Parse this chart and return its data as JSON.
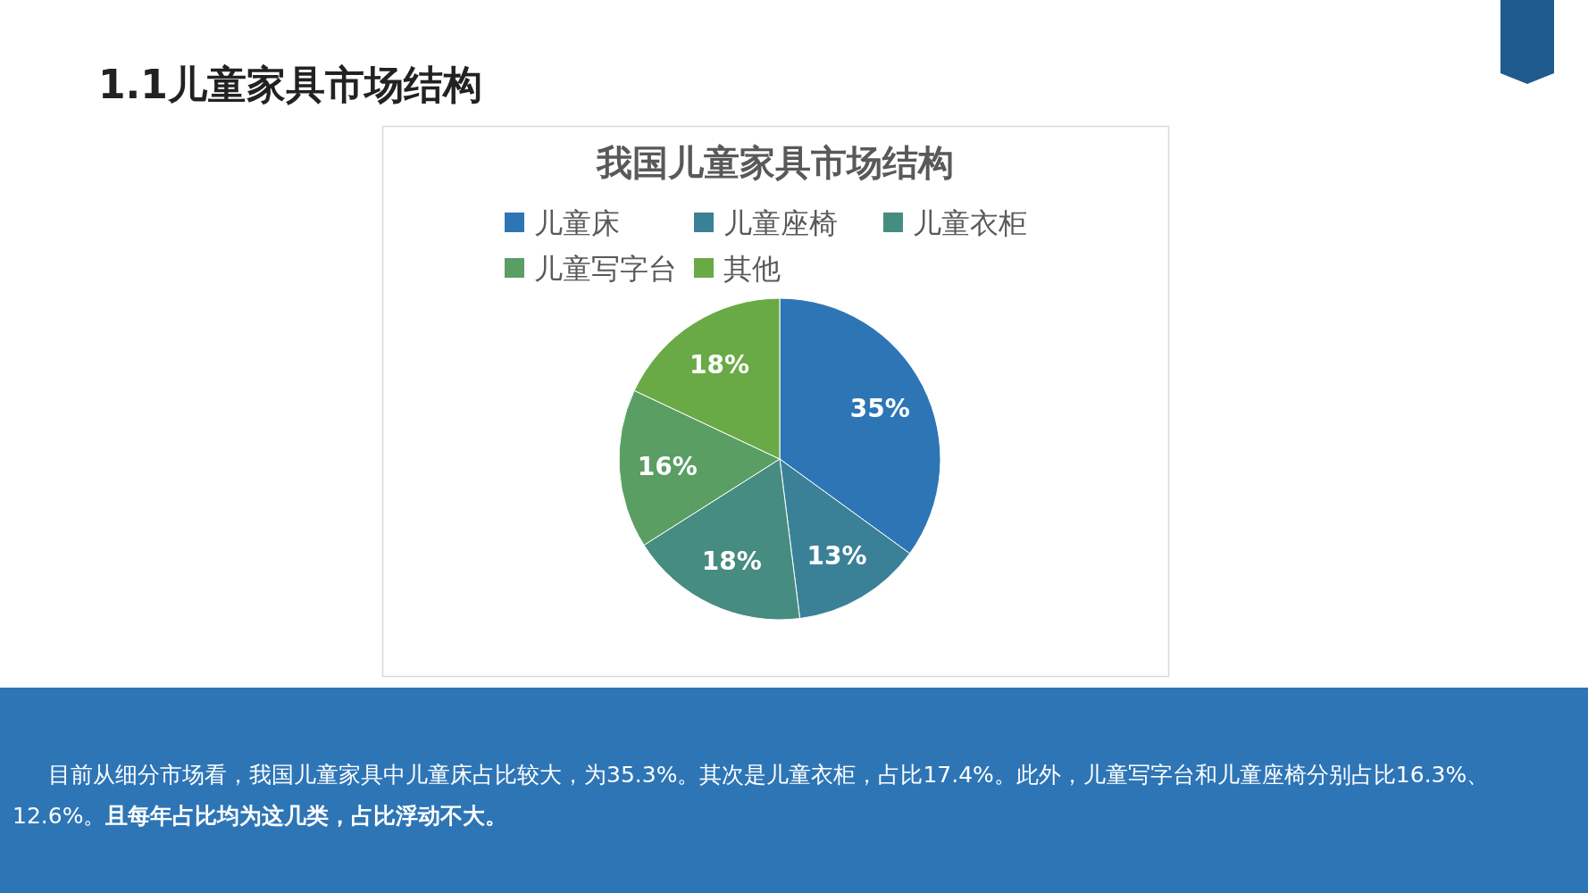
{
  "chart_data": {
    "type": "pie",
    "title": "我国儿童家具市场结构",
    "categories": [
      "儿童床",
      "儿童座椅",
      "儿童衣柜",
      "儿童写字台",
      "其他"
    ],
    "values": [
      35,
      13,
      18,
      16,
      18
    ],
    "colors": [
      "#2e75b6",
      "#3a8198",
      "#468c80",
      "#5a9e64",
      "#6aaa46"
    ],
    "value_labels": [
      "35%",
      "13%",
      "18%",
      "16%",
      "18%"
    ],
    "legend": "top",
    "annotations": [
      "1.1儿童家具市场结构",
      "目前从细分市场看，我国儿童家具中儿童床占比较大，为35.3%。其次是儿童衣柜，占比17.4%。此外，儿童写字台和儿童座椅分别占比16.3%、12.6%。",
      "且每年占比均为这几类，占比浮动不大。"
    ]
  }
}
